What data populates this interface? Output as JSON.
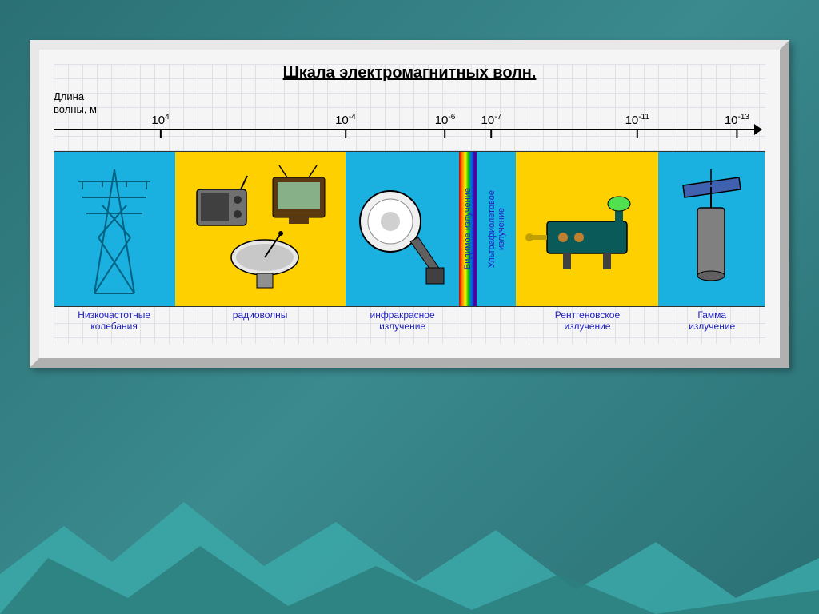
{
  "title": "Шкала электромагнитных волн.",
  "axis": {
    "label_line1": "Длина",
    "label_line2": "волны, м",
    "ticks": [
      {
        "base": "10",
        "exp": "4",
        "pos_pct": 15
      },
      {
        "base": "10",
        "exp": "-4",
        "pos_pct": 41
      },
      {
        "base": "10",
        "exp": "-6",
        "pos_pct": 55
      },
      {
        "base": "10",
        "exp": "-7",
        "pos_pct": 61.5
      },
      {
        "base": "10",
        "exp": "-11",
        "pos_pct": 82
      },
      {
        "base": "10",
        "exp": "-13",
        "pos_pct": 96
      }
    ]
  },
  "bands": [
    {
      "id": "low-freq",
      "width_pct": 17,
      "bg": "#1ab0e0",
      "label": "Низкочастотные\nколебания",
      "icon": "tower"
    },
    {
      "id": "radio",
      "width_pct": 24,
      "bg": "#ffd000",
      "label": "радиоволны",
      "icon": "radio"
    },
    {
      "id": "infrared",
      "width_pct": 16,
      "bg": "#1ab0e0",
      "label": "инфракрасное\nизлучение",
      "icon": "lamp"
    },
    {
      "id": "visible",
      "width_pct": 2.5,
      "bg": "rainbow",
      "label": "",
      "vtext": "Видимое излучение"
    },
    {
      "id": "uv",
      "width_pct": 5.5,
      "bg": "#1ab0e0",
      "label": "",
      "vtext": "Ультрафиолетовое\nизлучение"
    },
    {
      "id": "xray",
      "width_pct": 20,
      "bg": "#ffd000",
      "label": "Рентгеновское\nизлучение",
      "icon": "xray"
    },
    {
      "id": "gamma",
      "width_pct": 15,
      "bg": "#1ab0e0",
      "label": "Гамма\nизлучение",
      "icon": "gamma"
    }
  ],
  "colors": {
    "page_bg_start": "#2a7074",
    "page_bg_end": "#3a8a8e",
    "frame_bg": "#f5f5f5",
    "label_color": "#2020c0",
    "grid_color": "#e0e0e8",
    "mountain1": "#3ba8a8",
    "mountain2": "#2d8080"
  },
  "typography": {
    "title_size_pt": 20,
    "axis_label_size_pt": 13,
    "tick_size_pt": 15,
    "band_label_size_pt": 12
  }
}
